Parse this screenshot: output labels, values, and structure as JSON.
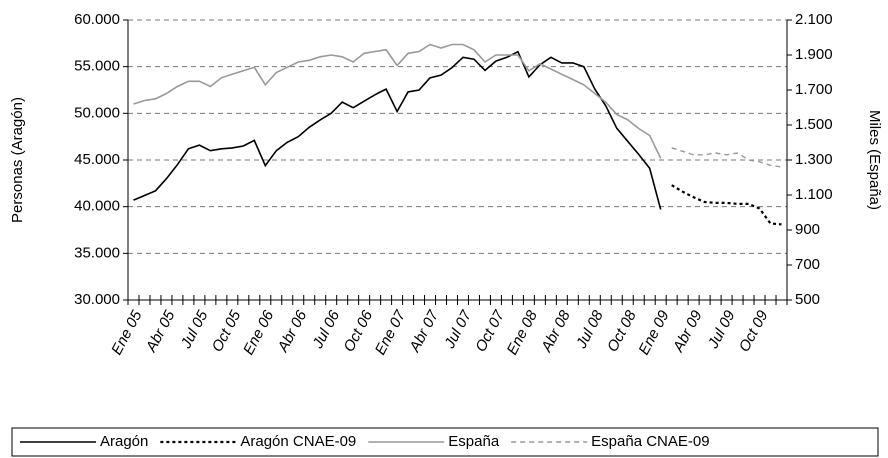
{
  "chart_data": {
    "type": "line",
    "y_label": "Personas (Aragón)",
    "y2_label": "Miles (España)",
    "categories": [
      "Ene 05",
      null,
      null,
      "Abr 05",
      null,
      null,
      "Jul 05",
      null,
      null,
      "Oct 05",
      null,
      null,
      "Ene 06",
      null,
      null,
      "Abr 06",
      null,
      null,
      "Jul 06",
      null,
      null,
      "Oct 06",
      null,
      null,
      "Ene 07",
      null,
      null,
      "Abr 07",
      null,
      null,
      "Jul 07",
      null,
      null,
      "Oct 07",
      null,
      null,
      "Ene 08",
      null,
      null,
      "Abr 08",
      null,
      null,
      "Jul 08",
      null,
      null,
      "Oct 08",
      null,
      null,
      "Ene 09",
      null,
      null,
      "Abr 09",
      null,
      null,
      "Jul 09",
      null,
      null,
      "Oct 09",
      null,
      null
    ],
    "series": [
      {
        "name": "Aragón",
        "color": "#000000",
        "line_style": "solid",
        "axis": "y",
        "values": [
          40700,
          41200,
          41700,
          43000,
          44500,
          46200,
          46600,
          46000,
          46200,
          46300,
          46500,
          47100,
          44400,
          46000,
          46900,
          47500,
          48500,
          49300,
          50000,
          51200,
          50600,
          51300,
          52000,
          52600,
          50200,
          52300,
          52500,
          53800,
          54100,
          54900,
          56000,
          55800,
          54600,
          55600,
          56000,
          56600,
          53900,
          55200,
          56000,
          55400,
          55400,
          55000,
          52600,
          50800,
          48400,
          47000,
          45600,
          44100,
          39700,
          null,
          null,
          null,
          null,
          null,
          null,
          null,
          null,
          null,
          null,
          null
        ]
      },
      {
        "name": "Aragón CNAE-09",
        "color": "#000000",
        "line_style": "dotted",
        "axis": "y",
        "values": [
          null,
          null,
          null,
          null,
          null,
          null,
          null,
          null,
          null,
          null,
          null,
          null,
          null,
          null,
          null,
          null,
          null,
          null,
          null,
          null,
          null,
          null,
          null,
          null,
          null,
          null,
          null,
          null,
          null,
          null,
          null,
          null,
          null,
          null,
          null,
          null,
          null,
          null,
          null,
          null,
          null,
          null,
          null,
          null,
          null,
          null,
          null,
          null,
          null,
          42300,
          41600,
          41000,
          40500,
          40400,
          40400,
          40300,
          40300,
          39800,
          38200,
          38100
        ]
      },
      {
        "name": "España",
        "color": "#999999",
        "line_style": "solid",
        "axis": "y2",
        "values": [
          1620,
          1640,
          1650,
          1680,
          1720,
          1750,
          1750,
          1720,
          1770,
          1790,
          1810,
          1830,
          1730,
          1800,
          1830,
          1860,
          1870,
          1890,
          1900,
          1890,
          1860,
          1910,
          1920,
          1930,
          1840,
          1910,
          1920,
          1960,
          1940,
          1960,
          1960,
          1930,
          1860,
          1900,
          1900,
          1900,
          1810,
          1850,
          1820,
          1790,
          1760,
          1730,
          1680,
          1630,
          1560,
          1530,
          1480,
          1440,
          1310,
          null,
          null,
          null,
          null,
          null,
          null,
          null,
          null,
          null,
          null,
          null
        ]
      },
      {
        "name": "España CNAE-09",
        "color": "#999999",
        "line_style": "dashed",
        "axis": "y2",
        "values": [
          null,
          null,
          null,
          null,
          null,
          null,
          null,
          null,
          null,
          null,
          null,
          null,
          null,
          null,
          null,
          null,
          null,
          null,
          null,
          null,
          null,
          null,
          null,
          null,
          null,
          null,
          null,
          null,
          null,
          null,
          null,
          null,
          null,
          null,
          null,
          null,
          null,
          null,
          null,
          null,
          null,
          null,
          null,
          null,
          null,
          null,
          null,
          null,
          null,
          1370,
          1350,
          1330,
          1330,
          1340,
          1330,
          1340,
          1300,
          1290,
          1270,
          1260
        ]
      }
    ],
    "ylim": [
      30000,
      60000
    ],
    "yticks": [
      {
        "value": 30000,
        "label": "30.000"
      },
      {
        "value": 35000,
        "label": "35.000"
      },
      {
        "value": 40000,
        "label": "40.000"
      },
      {
        "value": 45000,
        "label": "45.000"
      },
      {
        "value": 50000,
        "label": "50.000"
      },
      {
        "value": 55000,
        "label": "55.000"
      },
      {
        "value": 60000,
        "label": "60.000"
      }
    ],
    "y2lim": [
      500,
      2100
    ],
    "y2ticks": [
      500,
      700,
      900,
      {
        "value": 1100,
        "label": "1.100"
      },
      {
        "value": 1300,
        "label": "1.300"
      },
      {
        "value": 1500,
        "label": "1.500"
      },
      {
        "value": 1700,
        "label": "1.700"
      },
      {
        "value": 1900,
        "label": "1.900"
      },
      {
        "value": 2100,
        "label": "2.100"
      }
    ],
    "grid": true,
    "legend": "bottom"
  }
}
